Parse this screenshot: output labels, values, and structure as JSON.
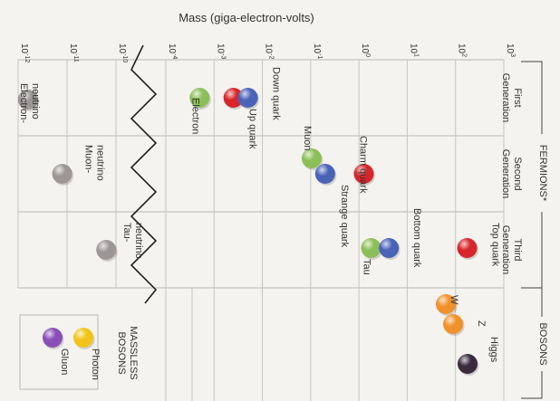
{
  "chart_data": {
    "type": "scatter",
    "title": "Mass (giga-electron-volts)",
    "axis_ticks": [
      "10-12",
      "10-11",
      "10-10",
      "10-4",
      "10-3",
      "10-2",
      "10-1",
      "10 0",
      "10 1",
      "10 2",
      "10 3"
    ],
    "axis_ticks_display": [
      {
        "base": "10",
        "exp": "-12"
      },
      {
        "base": "10",
        "exp": "-11"
      },
      {
        "base": "10",
        "exp": "-10"
      },
      {
        "base": "10",
        "exp": "-4"
      },
      {
        "base": "10",
        "exp": "-3"
      },
      {
        "base": "10",
        "exp": "-2"
      },
      {
        "base": "10",
        "exp": "-1"
      },
      {
        "base": "10",
        "exp": "0"
      },
      {
        "base": "10",
        "exp": "1"
      },
      {
        "base": "10",
        "exp": "2"
      },
      {
        "base": "10",
        "exp": "3"
      }
    ],
    "axis_break_between": [
      -10,
      -4
    ],
    "groups": {
      "fermions": "FERMIONS*",
      "bosons": "BOSONS",
      "massless": [
        "MASSLESS",
        "BOSONS"
      ]
    },
    "rows": [
      {
        "key": "first",
        "label": [
          "First",
          "Generation"
        ]
      },
      {
        "key": "second",
        "label": [
          "Second",
          "Generation"
        ]
      },
      {
        "key": "third",
        "label": [
          "Third",
          "Generation"
        ]
      }
    ],
    "particles": [
      {
        "name": [
          "Electron-",
          "neutrino"
        ],
        "row": "first",
        "log_mass": -11.8,
        "color": "#9c9796"
      },
      {
        "name": [
          "Electron"
        ],
        "row": "first",
        "log_mass": -3.3,
        "color": "#8cbf58"
      },
      {
        "name": [
          "Up quark"
        ],
        "row": "first",
        "log_mass": -2.6,
        "color": "#d7262b"
      },
      {
        "name": [
          "Down quark"
        ],
        "row": "first",
        "log_mass": -2.3,
        "color": "#4a63b8"
      },
      {
        "name": [
          "Muon-",
          "neutrino"
        ],
        "row": "second",
        "log_mass": -11.1,
        "color": "#9c9796"
      },
      {
        "name": [
          "Muon"
        ],
        "row": "second",
        "log_mass": -0.98,
        "color": "#8cbf58"
      },
      {
        "name": [
          "Strange quark"
        ],
        "row": "second",
        "log_mass": -0.7,
        "color": "#4a63b8"
      },
      {
        "name": [
          "Charm quark"
        ],
        "row": "second",
        "log_mass": 0.1,
        "color": "#d7262b"
      },
      {
        "name": [
          "Tau-",
          "neutrino"
        ],
        "row": "third",
        "log_mass": -10.2,
        "color": "#9c9796"
      },
      {
        "name": [
          "Tau"
        ],
        "row": "third",
        "log_mass": 0.25,
        "color": "#8cbf58"
      },
      {
        "name": [
          "Bottom quark"
        ],
        "row": "third",
        "log_mass": 0.62,
        "color": "#4a63b8"
      },
      {
        "name": [
          "Top quark"
        ],
        "row": "third",
        "log_mass": 2.24,
        "color": "#d7262b"
      },
      {
        "name": [
          "W"
        ],
        "row": "bosons",
        "log_mass": 1.9,
        "color": "#f0922b"
      },
      {
        "name": [
          "Z"
        ],
        "row": "bosons",
        "log_mass": 1.96,
        "color": "#f0922b"
      },
      {
        "name": [
          "Higgs"
        ],
        "row": "bosons",
        "log_mass": 2.1,
        "color": "#3a2a3e"
      },
      {
        "name": [
          "Gluon"
        ],
        "row": "massless",
        "log_mass": null,
        "color": "#8b4fb8"
      },
      {
        "name": [
          "Photon"
        ],
        "row": "massless",
        "log_mass": null,
        "color": "#f2c41a"
      }
    ]
  }
}
